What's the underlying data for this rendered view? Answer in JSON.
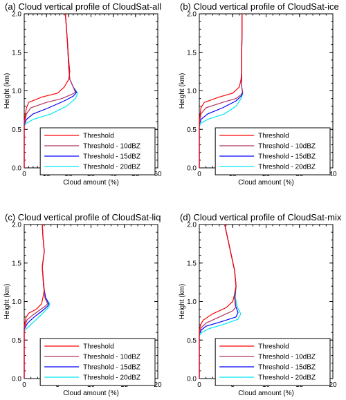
{
  "chart_data": [
    {
      "type": "line",
      "title": "(a) Cloud vertical profile of CloudSat-all",
      "xlabel": "Cloud amount (%)",
      "ylabel": "Height (km)",
      "xlim": [
        0,
        60
      ],
      "ylim": [
        0,
        2.0
      ],
      "xticks": [
        "0",
        "10",
        "20",
        "30",
        "40",
        "50",
        "60"
      ],
      "yticks": [
        "0.0",
        "0.5",
        "1.0",
        "1.5",
        "2.0"
      ],
      "legend_position": "bottom-right",
      "series": [
        {
          "name": "Threshold",
          "color": "#ff0000",
          "points": [
            [
              0,
              0
            ],
            [
              0,
              0.6
            ],
            [
              1,
              0.78
            ],
            [
              2,
              0.85
            ],
            [
              8,
              0.92
            ],
            [
              15,
              0.97
            ],
            [
              18,
              1.05
            ],
            [
              20,
              1.15
            ],
            [
              20.5,
              1.25
            ],
            [
              20,
              1.4
            ],
            [
              19.5,
              1.6
            ],
            [
              19,
              1.8
            ],
            [
              18.5,
              2.0
            ]
          ]
        },
        {
          "name": "Threshold - 10dBZ",
          "color": "#b03060",
          "points": [
            [
              0,
              0
            ],
            [
              0,
              0.58
            ],
            [
              1,
              0.7
            ],
            [
              3,
              0.78
            ],
            [
              10,
              0.85
            ],
            [
              17,
              0.9
            ],
            [
              21,
              0.95
            ],
            [
              23,
              0.98
            ],
            [
              22,
              1.05
            ],
            [
              20.5,
              1.15
            ],
            [
              20,
              1.3
            ],
            [
              19.5,
              1.6
            ],
            [
              19,
              1.8
            ],
            [
              18.5,
              2.0
            ]
          ]
        },
        {
          "name": "Threshold - 15dBZ",
          "color": "#0000ff",
          "points": [
            [
              0,
              0
            ],
            [
              0,
              0.56
            ],
            [
              1,
              0.63
            ],
            [
              4,
              0.7
            ],
            [
              11,
              0.78
            ],
            [
              18,
              0.87
            ],
            [
              22,
              0.93
            ],
            [
              23.5,
              0.98
            ],
            [
              22,
              1.05
            ],
            [
              20.5,
              1.15
            ],
            [
              20,
              1.3
            ],
            [
              19.5,
              1.6
            ],
            [
              19,
              1.8
            ],
            [
              18.5,
              2.0
            ]
          ]
        },
        {
          "name": "Threshold - 20dBZ",
          "color": "#00e5ee",
          "points": [
            [
              0,
              0
            ],
            [
              0,
              0.54
            ],
            [
              1,
              0.58
            ],
            [
              4,
              0.63
            ],
            [
              12,
              0.7
            ],
            [
              19,
              0.8
            ],
            [
              23,
              0.9
            ],
            [
              24,
              0.97
            ],
            [
              22,
              1.05
            ],
            [
              20.5,
              1.15
            ],
            [
              20,
              1.3
            ],
            [
              19.5,
              1.6
            ],
            [
              19,
              1.8
            ],
            [
              18.5,
              2.0
            ]
          ]
        }
      ]
    },
    {
      "type": "line",
      "title": "(b) Cloud vertical profile of CloudSat-ice",
      "xlabel": "Cloud amount (%)",
      "ylabel": "Height (km)",
      "xlim": [
        0,
        40
      ],
      "ylim": [
        0,
        2.0
      ],
      "xticks": [
        "0",
        "10",
        "20",
        "30",
        "40"
      ],
      "yticks": [
        "0.0",
        "0.5",
        "1.0",
        "1.5",
        "2.0"
      ],
      "legend_position": "bottom-right",
      "series": [
        {
          "name": "Threshold",
          "color": "#ff0000",
          "points": [
            [
              0,
              0
            ],
            [
              0,
              0.6
            ],
            [
              0.5,
              0.78
            ],
            [
              1.5,
              0.85
            ],
            [
              6,
              0.92
            ],
            [
              10,
              0.97
            ],
            [
              12,
              1.05
            ],
            [
              12.5,
              1.15
            ],
            [
              12.7,
              1.25
            ],
            [
              12.7,
              1.5
            ],
            [
              12.8,
              1.8
            ],
            [
              12.8,
              2.0
            ]
          ]
        },
        {
          "name": "Threshold - 10dBZ",
          "color": "#b03060",
          "points": [
            [
              0,
              0
            ],
            [
              0,
              0.58
            ],
            [
              0.5,
              0.7
            ],
            [
              2,
              0.78
            ],
            [
              7,
              0.85
            ],
            [
              11,
              0.9
            ],
            [
              12.5,
              0.95
            ],
            [
              13,
              0.98
            ],
            [
              12.7,
              1.05
            ],
            [
              12.7,
              1.2
            ],
            [
              12.7,
              1.5
            ],
            [
              12.8,
              1.8
            ],
            [
              12.8,
              2.0
            ]
          ]
        },
        {
          "name": "Threshold - 15dBZ",
          "color": "#0000ff",
          "points": [
            [
              0,
              0
            ],
            [
              0,
              0.56
            ],
            [
              0.5,
              0.63
            ],
            [
              2.5,
              0.7
            ],
            [
              7,
              0.78
            ],
            [
              11,
              0.87
            ],
            [
              12.5,
              0.93
            ],
            [
              13,
              0.97
            ],
            [
              12.7,
              1.05
            ],
            [
              12.7,
              1.2
            ],
            [
              12.7,
              1.5
            ],
            [
              12.8,
              1.8
            ],
            [
              12.8,
              2.0
            ]
          ]
        },
        {
          "name": "Threshold - 20dBZ",
          "color": "#00e5ee",
          "points": [
            [
              0,
              0
            ],
            [
              0,
              0.54
            ],
            [
              0.5,
              0.58
            ],
            [
              2.5,
              0.63
            ],
            [
              7.5,
              0.7
            ],
            [
              11,
              0.8
            ],
            [
              12.5,
              0.9
            ],
            [
              13,
              0.96
            ],
            [
              12.7,
              1.05
            ],
            [
              12.7,
              1.2
            ],
            [
              12.7,
              1.5
            ],
            [
              12.8,
              1.8
            ],
            [
              12.8,
              2.0
            ]
          ]
        }
      ]
    },
    {
      "type": "line",
      "title": "(c) Cloud vertical profile of CloudSat-liq",
      "xlabel": "Cloud amount (%)",
      "ylabel": "Height (km)",
      "xlim": [
        0,
        20
      ],
      "ylim": [
        0,
        2.0
      ],
      "xticks": [
        "0",
        "5",
        "10",
        "15",
        "20"
      ],
      "yticks": [
        "0.0",
        "0.5",
        "1.0",
        "1.5",
        "2.0"
      ],
      "legend_position": "bottom-right",
      "series": [
        {
          "name": "Threshold",
          "color": "#ff0000",
          "points": [
            [
              0,
              0
            ],
            [
              0,
              0.68
            ],
            [
              0.3,
              0.8
            ],
            [
              0.7,
              0.85
            ],
            [
              1.8,
              0.9
            ],
            [
              2.6,
              0.97
            ],
            [
              2.8,
              1.05
            ],
            [
              3,
              1.15
            ],
            [
              2.9,
              1.25
            ],
            [
              2.7,
              1.45
            ],
            [
              3,
              1.65
            ],
            [
              2.8,
              1.85
            ],
            [
              2.7,
              2.0
            ]
          ]
        },
        {
          "name": "Threshold - 10dBZ",
          "color": "#b03060",
          "points": [
            [
              0,
              0
            ],
            [
              0,
              0.66
            ],
            [
              0.4,
              0.76
            ],
            [
              1.2,
              0.82
            ],
            [
              2.5,
              0.9
            ],
            [
              3.3,
              0.95
            ],
            [
              3.5,
              0.97
            ],
            [
              3.1,
              1.05
            ],
            [
              2.9,
              1.2
            ],
            [
              2.7,
              1.45
            ],
            [
              3,
              1.65
            ],
            [
              2.8,
              1.85
            ],
            [
              2.7,
              2.0
            ]
          ]
        },
        {
          "name": "Threshold - 15dBZ",
          "color": "#0000ff",
          "points": [
            [
              0,
              0
            ],
            [
              0,
              0.64
            ],
            [
              0.5,
              0.72
            ],
            [
              1.5,
              0.8
            ],
            [
              2.7,
              0.88
            ],
            [
              3.5,
              0.94
            ],
            [
              3.7,
              0.97
            ],
            [
              3.2,
              1.05
            ],
            [
              2.9,
              1.2
            ],
            [
              2.7,
              1.45
            ],
            [
              3,
              1.65
            ],
            [
              2.8,
              1.85
            ],
            [
              2.7,
              2.0
            ]
          ]
        },
        {
          "name": "Threshold - 20dBZ",
          "color": "#00e5ee",
          "points": [
            [
              0,
              0
            ],
            [
              0,
              0.62
            ],
            [
              0.6,
              0.67
            ],
            [
              1.6,
              0.75
            ],
            [
              2.8,
              0.85
            ],
            [
              3.7,
              0.93
            ],
            [
              3.8,
              0.97
            ],
            [
              3.2,
              1.05
            ],
            [
              2.9,
              1.2
            ],
            [
              2.7,
              1.45
            ],
            [
              3,
              1.65
            ],
            [
              2.8,
              1.85
            ],
            [
              2.7,
              2.0
            ]
          ]
        }
      ]
    },
    {
      "type": "line",
      "title": "(d) Cloud vertical profile of CloudSat-mix",
      "xlabel": "Cloud amount (%)",
      "ylabel": "Height (km)",
      "xlim": [
        0,
        20
      ],
      "ylim": [
        0,
        2.0
      ],
      "xticks": [
        "0",
        "5",
        "10",
        "15",
        "20"
      ],
      "yticks": [
        "0.0",
        "0.5",
        "1.0",
        "1.5",
        "2.0"
      ],
      "legend_position": "bottom-right",
      "series": [
        {
          "name": "Threshold",
          "color": "#ff0000",
          "points": [
            [
              0,
              0
            ],
            [
              0,
              0.62
            ],
            [
              0.2,
              0.7
            ],
            [
              0.6,
              0.76
            ],
            [
              2,
              0.84
            ],
            [
              4,
              0.92
            ],
            [
              5,
              1.0
            ],
            [
              5.3,
              1.1
            ],
            [
              5.5,
              1.2
            ],
            [
              5.3,
              1.4
            ],
            [
              4.8,
              1.6
            ],
            [
              4.3,
              1.8
            ],
            [
              3.8,
              2.0
            ]
          ]
        },
        {
          "name": "Threshold - 10dBZ",
          "color": "#b03060",
          "points": [
            [
              0,
              0
            ],
            [
              0,
              0.6
            ],
            [
              0.3,
              0.66
            ],
            [
              1,
              0.72
            ],
            [
              3,
              0.8
            ],
            [
              5,
              0.88
            ],
            [
              5.5,
              0.93
            ],
            [
              5.4,
              1.0
            ],
            [
              5.3,
              1.1
            ],
            [
              5.5,
              1.2
            ],
            [
              5.3,
              1.4
            ],
            [
              4.8,
              1.6
            ],
            [
              4.3,
              1.8
            ],
            [
              3.8,
              2.0
            ]
          ]
        },
        {
          "name": "Threshold - 15dBZ",
          "color": "#0000ff",
          "points": [
            [
              0,
              0
            ],
            [
              0,
              0.58
            ],
            [
              0.3,
              0.63
            ],
            [
              1,
              0.68
            ],
            [
              3,
              0.73
            ],
            [
              5.5,
              0.8
            ],
            [
              5.8,
              0.86
            ],
            [
              5.4,
              0.95
            ],
            [
              5.3,
              1.05
            ],
            [
              5.5,
              1.2
            ],
            [
              5.3,
              1.4
            ],
            [
              4.8,
              1.6
            ],
            [
              4.3,
              1.8
            ],
            [
              3.8,
              2.0
            ]
          ]
        },
        {
          "name": "Threshold - 20dBZ",
          "color": "#00e5ee",
          "points": [
            [
              0,
              0
            ],
            [
              0,
              0.56
            ],
            [
              0.4,
              0.6
            ],
            [
              1.5,
              0.65
            ],
            [
              3.5,
              0.7
            ],
            [
              5.8,
              0.77
            ],
            [
              6.2,
              0.84
            ],
            [
              5.7,
              0.93
            ],
            [
              5.4,
              1.05
            ],
            [
              5.5,
              1.2
            ],
            [
              5.3,
              1.4
            ],
            [
              4.8,
              1.6
            ],
            [
              4.3,
              1.8
            ],
            [
              3.8,
              2.0
            ]
          ]
        }
      ]
    }
  ]
}
